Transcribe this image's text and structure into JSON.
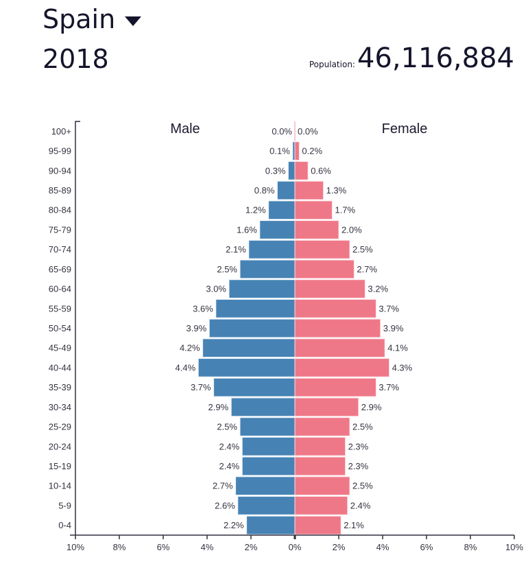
{
  "header": {
    "country": "Spain",
    "year": "2018",
    "population_label": "Population:",
    "population_value": "46,116,884"
  },
  "chart_data": {
    "type": "bar",
    "title": "Spain 2018 Population Pyramid",
    "categories": [
      "100+",
      "95-99",
      "90-94",
      "85-89",
      "80-84",
      "75-79",
      "70-74",
      "65-69",
      "60-64",
      "55-59",
      "50-54",
      "45-49",
      "40-44",
      "35-39",
      "30-34",
      "25-29",
      "20-24",
      "15-19",
      "10-14",
      "5-9",
      "0-4"
    ],
    "series": [
      {
        "name": "Male",
        "color": "#4682b4",
        "values": [
          0.0,
          0.1,
          0.3,
          0.8,
          1.2,
          1.6,
          2.1,
          2.5,
          3.0,
          3.6,
          3.9,
          4.2,
          4.4,
          3.7,
          2.9,
          2.5,
          2.4,
          2.4,
          2.7,
          2.6,
          2.2
        ]
      },
      {
        "name": "Female",
        "color": "#ef7888",
        "values": [
          0.0,
          0.2,
          0.6,
          1.3,
          1.7,
          2.0,
          2.5,
          2.7,
          3.2,
          3.7,
          3.9,
          4.1,
          4.3,
          3.7,
          2.9,
          2.5,
          2.3,
          2.3,
          2.5,
          2.4,
          2.1
        ]
      }
    ],
    "xlabel": "",
    "ylabel": "",
    "xlim": [
      -10,
      10
    ],
    "xticks": [
      "10%",
      "8%",
      "6%",
      "4%",
      "2%",
      "0%",
      "2%",
      "4%",
      "6%",
      "8%",
      "10%"
    ],
    "side_labels": {
      "left": "Male",
      "right": "Female"
    },
    "grid": false
  }
}
